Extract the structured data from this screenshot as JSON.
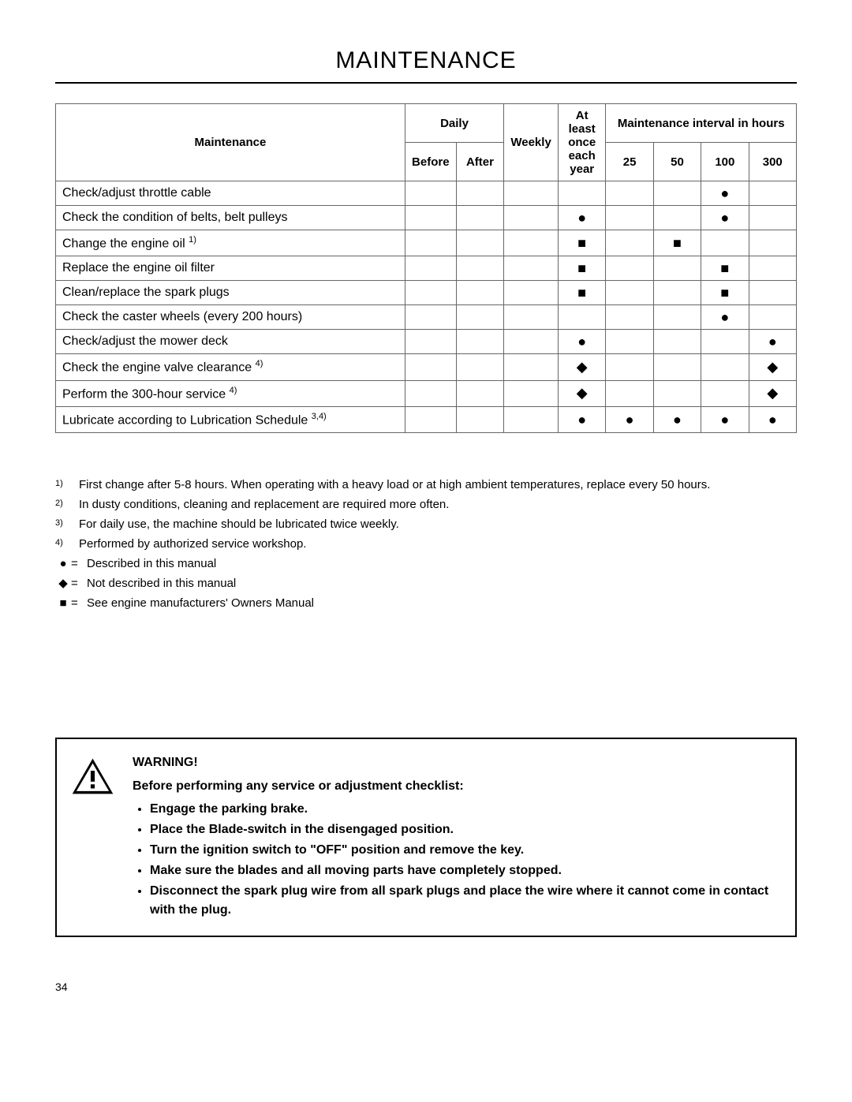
{
  "page_title": "MAINTENANCE",
  "page_number": "34",
  "table": {
    "headers": {
      "maintenance": "Maintenance",
      "daily": "Daily",
      "weekly": "Weekly",
      "atleast": "At least once each year",
      "interval": "Maintenance interval in hours",
      "before": "Before",
      "after": "After",
      "h25": "25",
      "h50": "50",
      "h100": "100",
      "h300": "300"
    },
    "rows": [
      {
        "label": "Check/adjust throttle cable",
        "sup": "",
        "cells": [
          "",
          "",
          "",
          "",
          "",
          "",
          "●",
          ""
        ]
      },
      {
        "label": "Check the condition of belts, belt pulleys",
        "sup": "",
        "cells": [
          "",
          "",
          "",
          "●",
          "",
          "",
          "●",
          ""
        ]
      },
      {
        "label": "Change the engine oil ",
        "sup": "1)",
        "cells": [
          "",
          "",
          "",
          "■",
          "",
          "■",
          "",
          ""
        ]
      },
      {
        "label": "Replace the engine oil filter",
        "sup": "",
        "cells": [
          "",
          "",
          "",
          "■",
          "",
          "",
          "■",
          ""
        ]
      },
      {
        "label": "Clean/replace the spark plugs",
        "sup": "",
        "cells": [
          "",
          "",
          "",
          "■",
          "",
          "",
          "■",
          ""
        ]
      },
      {
        "label": "Check the caster wheels (every 200 hours)",
        "sup": "",
        "cells": [
          "",
          "",
          "",
          "",
          "",
          "",
          "●",
          ""
        ]
      },
      {
        "label": "Check/adjust the mower deck",
        "sup": "",
        "cells": [
          "",
          "",
          "",
          "●",
          "",
          "",
          "",
          "●"
        ]
      },
      {
        "label": "Check the engine valve clearance ",
        "sup": "4)",
        "cells": [
          "",
          "",
          "",
          "◆",
          "",
          "",
          "",
          "◆"
        ]
      },
      {
        "label": "Perform the 300-hour service ",
        "sup": "4)",
        "cells": [
          "",
          "",
          "",
          "◆",
          "",
          "",
          "",
          "◆"
        ]
      },
      {
        "label": "Lubricate according to Lubrication Schedule ",
        "sup": "3,4)",
        "cells": [
          "",
          "",
          "",
          "●",
          "●",
          "●",
          "●",
          "●"
        ]
      }
    ]
  },
  "footnotes": [
    {
      "num": "1)",
      "text": "First change after 5-8 hours. When operating with a heavy load or at high ambient temperatures, replace every 50 hours."
    },
    {
      "num": "2)",
      "text": "In dusty conditions, cleaning and replacement are required more often."
    },
    {
      "num": "3)",
      "text": "For daily use, the machine should be lubricated twice weekly."
    },
    {
      "num": "4)",
      "text": "Performed by authorized service workshop."
    }
  ],
  "legend": [
    {
      "sym": "●",
      "text": "Described in this manual"
    },
    {
      "sym": "◆",
      "text": "Not described in this manual"
    },
    {
      "sym": "■",
      "text": "See engine manufacturers' Owners Manual"
    }
  ],
  "warning": {
    "title": "WARNING!",
    "intro": "Before performing any service or adjustment checklist:",
    "items": [
      "Engage the parking brake.",
      "Place the Blade-switch in the disengaged position.",
      "Turn the ignition switch to \"OFF\" position and remove the key.",
      "Make sure the blades and all moving parts have completely stopped.",
      "Disconnect the spark plug wire from all spark plugs and place the wire where it cannot come in contact with the plug."
    ]
  }
}
